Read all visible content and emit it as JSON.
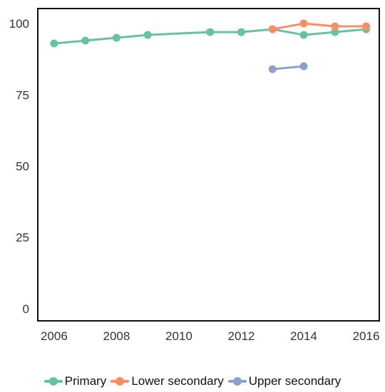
{
  "chart_data": {
    "type": "line",
    "title": "",
    "xlabel": "",
    "ylabel": "",
    "xlim": [
      2005.5,
      2016.4
    ],
    "ylim": [
      -4,
      105
    ],
    "x_ticks": [
      "2006",
      "2008",
      "2010",
      "2012",
      "2014",
      "2016"
    ],
    "y_ticks": [
      "0",
      "25",
      "50",
      "75",
      "100"
    ],
    "grid": false,
    "legend_position": "bottom",
    "series": [
      {
        "name": "Primary",
        "color": "#66c2a5",
        "points": [
          [
            2006,
            93
          ],
          [
            2007,
            94
          ],
          [
            2008,
            95
          ],
          [
            2009,
            96
          ],
          [
            2011,
            97
          ],
          [
            2012,
            97
          ],
          [
            2013,
            98
          ],
          [
            2014,
            96
          ],
          [
            2015,
            97
          ],
          [
            2016,
            98
          ]
        ]
      },
      {
        "name": "Lower secondary",
        "color": "#fc8d62",
        "points": [
          [
            2013,
            98
          ],
          [
            2014,
            100
          ],
          [
            2015,
            99
          ],
          [
            2016,
            99
          ]
        ]
      },
      {
        "name": "Upper secondary",
        "color": "#8da0cb",
        "points": [
          [
            2013,
            84
          ],
          [
            2014,
            85
          ]
        ]
      }
    ]
  }
}
